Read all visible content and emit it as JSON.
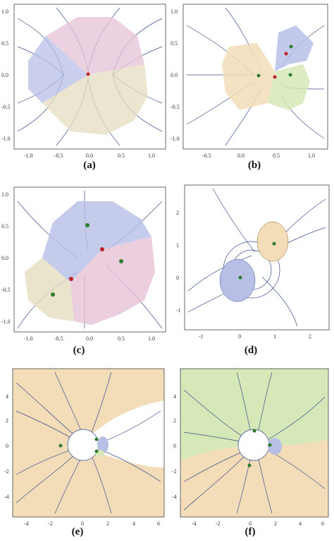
{
  "figure": {
    "panels": [
      {
        "label": "(a)",
        "x_ticks": [
          "-1.0",
          "-0.5",
          "0.0",
          "0.5",
          "1.0"
        ],
        "y_ticks": [
          "1.0",
          "0.5",
          "0.0",
          "-0.5",
          "-1.0"
        ]
      },
      {
        "label": "(b)",
        "x_ticks": [
          "-0.5",
          "0.0",
          "0.5",
          "1.0"
        ],
        "y_ticks": [
          "1.0",
          "0.5",
          "0.0",
          "-0.5",
          "-1.0"
        ]
      },
      {
        "label": "(c)",
        "x_ticks": [
          "-1.0",
          "-0.5",
          "0.0",
          "0.5",
          "1.0"
        ],
        "y_ticks": [
          "1.0",
          "0.5",
          "0.0",
          "-0.5",
          "-1.0"
        ]
      },
      {
        "label": "(d)",
        "x_ticks": [
          "-1",
          "0",
          "1",
          "2"
        ],
        "y_ticks": [
          "2",
          "1",
          "0",
          "-1"
        ]
      },
      {
        "label": "(e)",
        "x_ticks": [
          "-4",
          "-2",
          "0",
          "2",
          "4",
          "6"
        ],
        "y_ticks": [
          "4",
          "2",
          "0",
          "-2",
          "-4"
        ]
      },
      {
        "label": "(f)",
        "x_ticks": [
          "-4",
          "-2",
          "0",
          "2",
          "4",
          "6"
        ],
        "y_ticks": [
          "4",
          "2",
          "0",
          "-2",
          "-4"
        ]
      }
    ],
    "colors": {
      "blue_region": "#b7bfe6",
      "pink_region": "#e6c3d6",
      "tan_region": "#e6ddc0",
      "orange_region": "#f3ddb8",
      "green_region": "#d7e8b8",
      "streamline": "#3a4f8f",
      "red_point": "#c0242a",
      "green_point": "#2e7d2e"
    }
  }
}
